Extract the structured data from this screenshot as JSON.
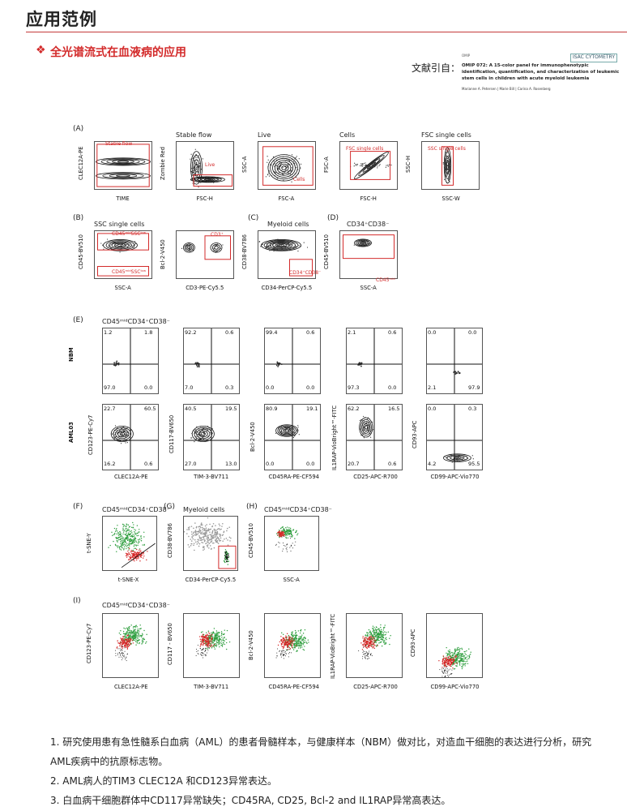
{
  "header": {
    "title": "应用范例",
    "accent_color": "#c43a3a"
  },
  "subtitle": {
    "text": "全光谱流式在血液病的应用",
    "mark": "❖",
    "color": "#d32b2b"
  },
  "citation": {
    "label": "文献引自：",
    "logo": "ISAC CYTOMETRY",
    "journal": "OMIP",
    "title": "OMIP 072: A 15-color panel for immunophenotypic identification, quantification, and characterization of leukemic stem cells in children with acute myeloid leukemia",
    "authors": "Marianne A. Petersen | Marie Bill | Carina A. Rosenberg"
  },
  "figure": {
    "panels": {
      "A": "(A)",
      "B": "(B)",
      "C": "(C)",
      "D": "(D)",
      "E": "(E)",
      "F": "(F)",
      "G": "(G)",
      "H": "(H)",
      "I": "(I)"
    },
    "A": [
      {
        "title": "",
        "gate": "Stable flow",
        "x": "TIME",
        "y": "CLEC12A-PE"
      },
      {
        "title": "Stable flow",
        "gate": "Live",
        "x": "FSC-H",
        "y": "Zombie Red"
      },
      {
        "title": "Live",
        "gate": "Cells",
        "x": "FSC-A",
        "y": "SSC-A"
      },
      {
        "title": "Cells",
        "gate": "FSC single cells",
        "x": "FSC-H",
        "y": "FSC-A"
      },
      {
        "title": "FSC single cells",
        "gate": "SSC single cells",
        "x": "SSC-W",
        "y": "SSC-H"
      }
    ],
    "B": {
      "title": "SSC single cells",
      "gate_top": "CD45ᵐⁱᵈSSCˡᵒʷ",
      "gate_bot": "CD45ᵐⁱᵈSSCˡᵒʷ",
      "x": "SSC-A",
      "y": "CD45-BV510"
    },
    "B2": {
      "gate": "CD3⁺",
      "x": "CD3-PE-Cy5.5",
      "y": "Bcl-2-V450"
    },
    "C": {
      "title": "Myeloid cells",
      "gate": "CD34⁺CD38⁻",
      "x": "CD34-PerCP-Cy5.5",
      "y": "CD38-BV786"
    },
    "D": {
      "title": "CD34⁺CD38⁻",
      "gate": "CD45ᵐⁱᵈ",
      "x": "SSC-A",
      "y": "CD45-BV510"
    },
    "E": {
      "title": "CD45ᵐⁱᵈCD34⁺CD38⁻",
      "row_labels": [
        "NBM",
        "AML03"
      ],
      "cols": [
        {
          "x": "CLEC12A-PE",
          "y": "CD123-PE-Cy7",
          "nbm": [
            "1.2",
            "1.8",
            "97.0",
            "0.0"
          ],
          "aml": [
            "22.7",
            "60.5",
            "16.2",
            "0.6"
          ]
        },
        {
          "x": "TIM-3-BV711",
          "y": "CD117-BV650",
          "nbm": [
            "92.2",
            "0.6",
            "7.0",
            "0.3"
          ],
          "aml": [
            "40.5",
            "19.5",
            "27.0",
            "13.0"
          ]
        },
        {
          "x": "CD45RA-PE-CF594",
          "y": "Bcl-2-V450",
          "nbm": [
            "99.4",
            "0.6",
            "0.0",
            "0.0"
          ],
          "aml": [
            "80.9",
            "19.1",
            "0.0",
            "0.0"
          ]
        },
        {
          "x": "CD25-APC-R700",
          "y": "IL1RAP-VioBright™-FITC",
          "nbm": [
            "2.1",
            "0.6",
            "97.3",
            "0.0"
          ],
          "aml": [
            "62.2",
            "16.5",
            "20.7",
            "0.6"
          ]
        },
        {
          "x": "CD99-APC-Vio770",
          "y": "CD93-APC",
          "nbm": [
            "0.0",
            "0.0",
            "2.1",
            "97.9"
          ],
          "aml": [
            "0.0",
            "0.3",
            "4.2",
            "95.5"
          ]
        }
      ]
    },
    "F": {
      "title": "CD45ᵐⁱᵈCD34⁺CD38⁻",
      "x": "t-SNE-X",
      "y": "t-SNE-Y"
    },
    "G": {
      "title": "Myeloid cells",
      "x": "CD34-PerCP-Cy5.5",
      "y": "CD38-BV786"
    },
    "H": {
      "title": "CD45ᵐⁱᵈCD34⁺CD38⁻",
      "x": "SSC-A",
      "y": "CD45-BV510"
    },
    "I": {
      "title": "CD45ᵐⁱᵈCD34⁺CD38⁻",
      "cols": [
        {
          "x": "CLEC12A-PE",
          "y": "CD123-PE-Cy7"
        },
        {
          "x": "TIM-3-BV711",
          "y": "CD117 - BV650"
        },
        {
          "x": "CD45RA-PE-CF594",
          "y": "Bcl-2-V450"
        },
        {
          "x": "CD25-APC-R700",
          "y": "IL1RAP-VioBright™-FITC"
        },
        {
          "x": "CD99-APC-Vio770",
          "y": "CD93-APC"
        }
      ]
    }
  },
  "notes": [
    "1. 研究使用患有急性髓系白血病（AML）的患者骨髓样本，与健康样本（NBM）做对比，对造血干细胞的表达进行分析，研究AML疾病中的抗原标志物。",
    "2. AML病人的TIM3 CLEC12A 和CD123异常表达。",
    "3. 白血病干细胞群体中CD117异常缺失；CD45RA, CD25, Bcl-2 and IL1RAP异常高表达。"
  ]
}
